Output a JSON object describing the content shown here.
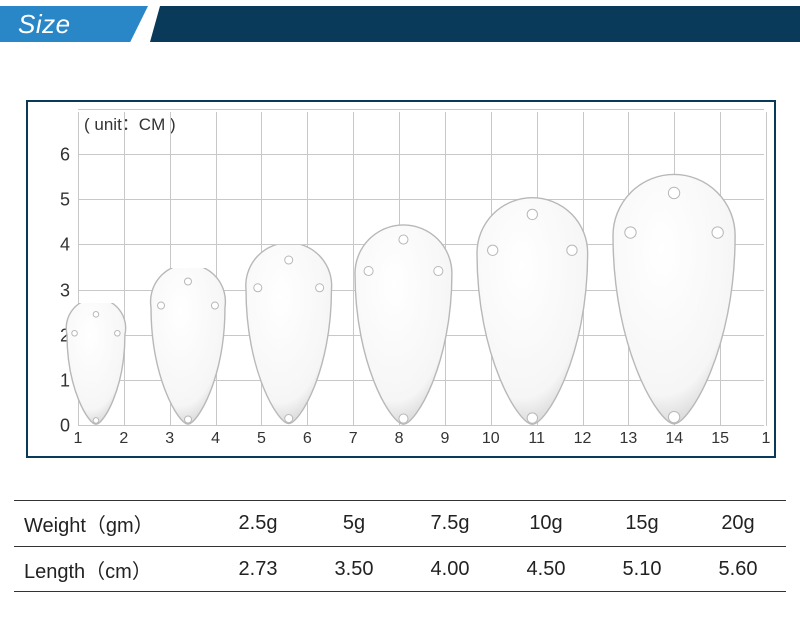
{
  "header": {
    "title": "Size"
  },
  "chart": {
    "type": "size-comparison",
    "unit_label": "( unit：CM )",
    "background_color": "#ffffff",
    "border_color": "#0a3a5a",
    "grid_color": "#c8c8c8",
    "y": {
      "min": 0,
      "max": 7,
      "step": 1,
      "labels": [
        "0",
        "1",
        "2",
        "3",
        "4",
        "5",
        "6",
        ""
      ]
    },
    "x": {
      "min": 1,
      "max": 16,
      "step": 1,
      "labels": [
        "1",
        "2",
        "3",
        "4",
        "5",
        "6",
        "7",
        "8",
        "9",
        "10",
        "11",
        "12",
        "13",
        "14",
        "15",
        "1"
      ]
    },
    "lure_fill": "#ffffff",
    "lure_stroke": "#b8b8b8",
    "lure_shadow": "#d0d0d0",
    "lures": [
      {
        "x_center": 1.4,
        "height_cm": 2.73,
        "width_cm": 1.35
      },
      {
        "x_center": 3.4,
        "height_cm": 3.5,
        "width_cm": 1.7
      },
      {
        "x_center": 5.6,
        "height_cm": 4.0,
        "width_cm": 1.95
      },
      {
        "x_center": 8.1,
        "height_cm": 4.5,
        "width_cm": 2.2
      },
      {
        "x_center": 10.9,
        "height_cm": 5.1,
        "width_cm": 2.5
      },
      {
        "x_center": 14.0,
        "height_cm": 5.6,
        "width_cm": 2.75
      }
    ]
  },
  "table": {
    "rows": [
      {
        "head": "Weight（gm）",
        "cells": [
          "2.5g",
          "5g",
          "7.5g",
          "10g",
          "15g",
          "20g"
        ]
      },
      {
        "head": "Length（cm）",
        "cells": [
          "2.73",
          "3.50",
          "4.00",
          "4.50",
          "5.10",
          "5.60"
        ]
      }
    ],
    "font_size": 20,
    "border_color": "#333333"
  },
  "colors": {
    "header_light": "#2986c7",
    "header_dark": "#0a3a5a",
    "header_text": "#ffffff"
  }
}
